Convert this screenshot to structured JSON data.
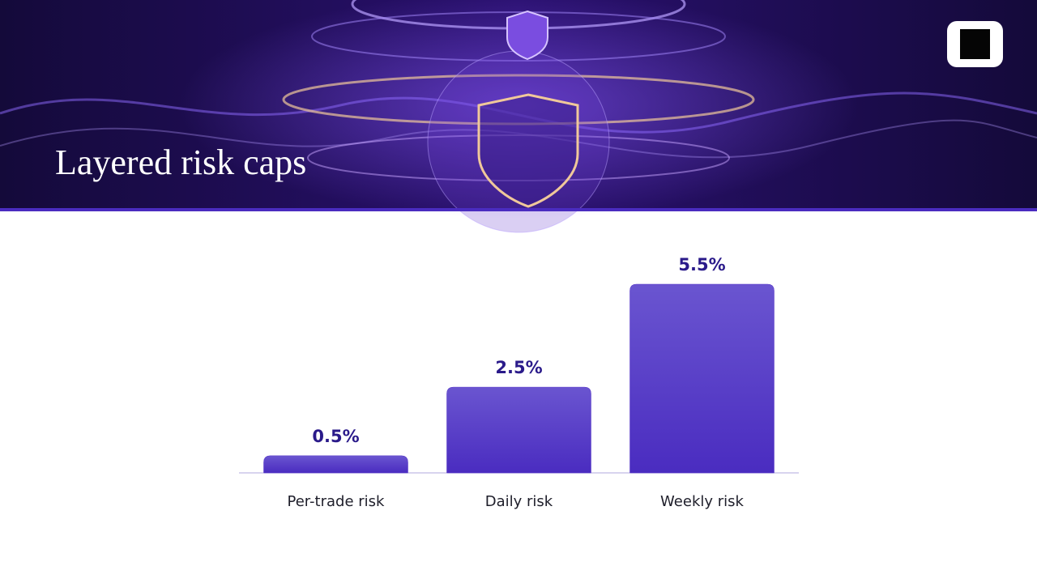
{
  "chart_data": {
    "type": "bar",
    "title": "Layered risk caps",
    "categories": [
      "Per-trade risk",
      "Daily risk",
      "Weekly risk"
    ],
    "values": [
      0.5,
      2.5,
      5.5
    ],
    "value_labels": [
      "0.5%",
      "2.5%",
      "5.5%"
    ],
    "color": "#5534c8"
  }
}
